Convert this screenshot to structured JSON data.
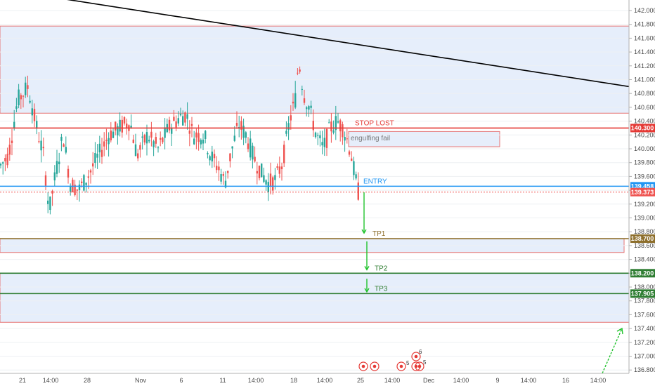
{
  "colors": {
    "up": "#26a69a",
    "down": "#ef5350",
    "zone_fill": "#e6eefb",
    "zone_border_red": "#e57373",
    "trendline": "#000000",
    "stop": "#e53935",
    "entry": "#2196f3",
    "tp_green": "#2e7d32",
    "tp_brown": "#8d6e2b",
    "arrow_green": "#22c32e",
    "current_price": "#ef5350"
  },
  "chart_data": {
    "type": "candlestick",
    "title": "",
    "y_range": [
      136.7,
      142.1
    ],
    "price_ticks": [
      "142.000",
      "141.800",
      "141.600",
      "141.400",
      "141.200",
      "141.000",
      "140.800",
      "140.600",
      "140.400",
      "140.200",
      "140.000",
      "139.800",
      "139.600",
      "139.400",
      "139.200",
      "139.000",
      "138.800",
      "138.600",
      "138.400",
      "138.200",
      "138.000",
      "137.800",
      "137.600",
      "137.400",
      "137.200",
      "137.000",
      "136.800"
    ],
    "time_labels": [
      "21",
      "14:00",
      "28",
      "Nov",
      "6",
      "11",
      "14:00",
      "18",
      "14:00",
      "25",
      "14:00",
      "Dec",
      "14:00",
      "9",
      "14:00",
      "16",
      "14:00"
    ],
    "trendline": {
      "from_price": 142.2,
      "to_price": 140.9
    },
    "zones": [
      {
        "name": "upper-resistance-zone",
        "top": 141.775,
        "bottom": 140.515,
        "border": "red"
      },
      {
        "name": "engulfing-zone",
        "top": 140.25,
        "bottom": 140.03,
        "border": "red"
      },
      {
        "name": "tp1-zone",
        "top": 138.7,
        "bottom": 138.5,
        "border": "red"
      },
      {
        "name": "tp2-tp3-zone",
        "top": 138.2,
        "bottom": 137.49,
        "border": "red"
      }
    ],
    "levels": [
      {
        "name": "stop-lost",
        "price": 140.3,
        "label": "STOP LOST",
        "badge": "140.300",
        "color": "stop"
      },
      {
        "name": "entry",
        "price": 139.458,
        "label": "ENTRY",
        "badge": "139.458",
        "color": "entry"
      },
      {
        "name": "current-price",
        "price": 139.373,
        "label": "",
        "badge": "139.373",
        "color": "current_price"
      },
      {
        "name": "tp1",
        "price": 138.7,
        "label": "TP1",
        "badge": "138.700",
        "color": "tp_brown"
      },
      {
        "name": "tp2",
        "price": 138.2,
        "label": "TP2",
        "badge": "138.200",
        "color": "tp_green"
      },
      {
        "name": "tp3",
        "price": 137.905,
        "label": "TP3",
        "badge": "137.905",
        "color": "tp_green"
      }
    ],
    "notes": {
      "engulfing": "engulfing fail"
    },
    "event_markers": [
      "5",
      "6",
      "5"
    ]
  }
}
